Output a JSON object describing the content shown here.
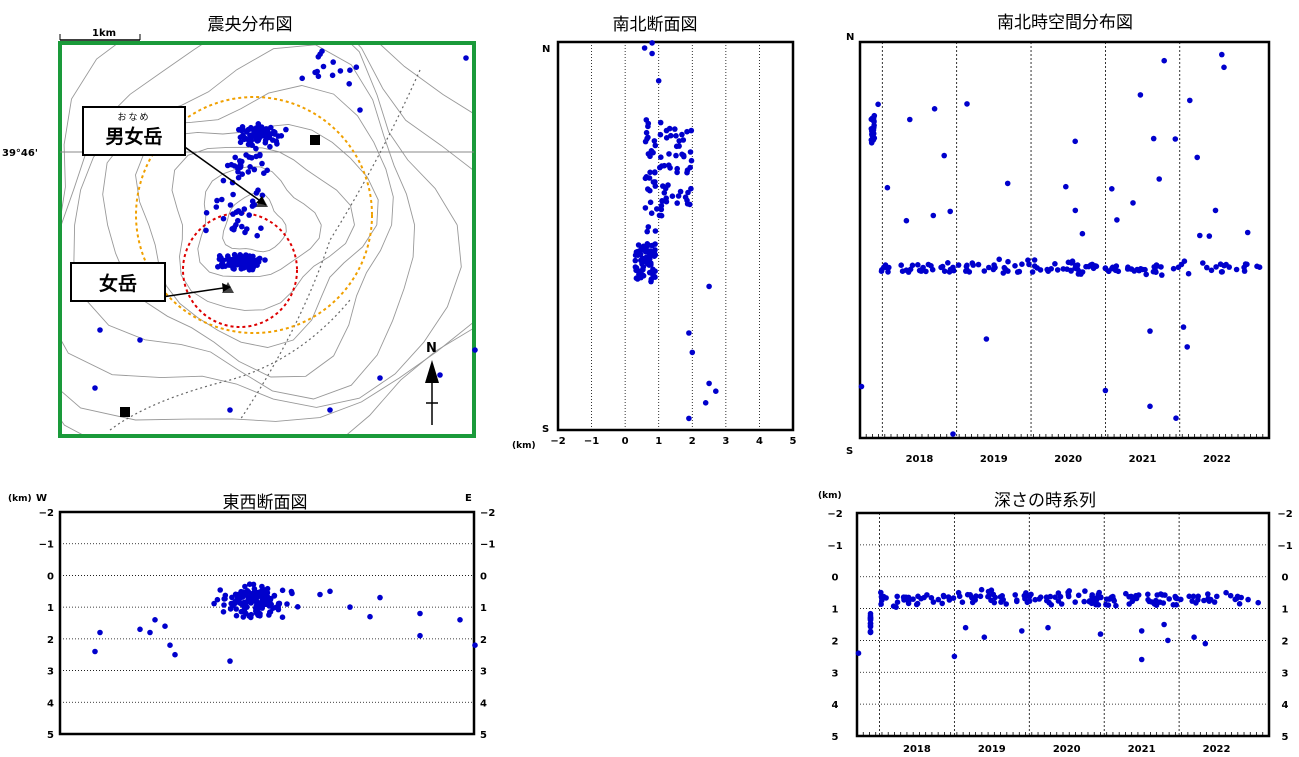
{
  "map": {
    "title": "震央分布図",
    "scale_label": "1km",
    "lat_label": "39°46'",
    "north_label": "N",
    "callout_onnnanome": "男女岳",
    "callout_onname_ruby": "おなめ",
    "callout_medake": "女岳",
    "colors": {
      "frame": "#1a9a3a",
      "dots": "#0000cc",
      "outer_circle": "#f0a000",
      "inner_circle": "#dd0000"
    }
  },
  "ns_section": {
    "title": "南北断面図",
    "top_label": "N",
    "bottom_label": "S",
    "unit": "(km)"
  },
  "ns_time": {
    "title": "南北時空間分布図",
    "top_label": "N",
    "bottom_label": "S"
  },
  "ew_section": {
    "title": "東西断面図",
    "unit": "(km)",
    "left_label": "W",
    "right_label": "E"
  },
  "depth_time": {
    "title": "深さの時系列",
    "unit": "(km)"
  },
  "chart_data": [
    {
      "type": "scatter",
      "title": "南北断面図",
      "xlabel": "(km)",
      "x_ticks": [
        "−2",
        "−1",
        "0",
        "1",
        "2",
        "3",
        "4",
        "5"
      ],
      "xlim": [
        -2,
        5
      ],
      "grid": true,
      "points_description_free": true,
      "clusters": [
        {
          "x_range": [
            0.4,
            1.0
          ],
          "n": 3,
          "pos_range": [
            0.0,
            0.03
          ]
        },
        {
          "x_range": [
            0.6,
            1.2
          ],
          "n": 45,
          "pos_range": [
            0.2,
            0.5
          ]
        },
        {
          "x_range": [
            0.3,
            0.9
          ],
          "n": 60,
          "pos_range": [
            0.52,
            0.62
          ]
        },
        {
          "x_range": [
            1.2,
            2.0
          ],
          "n": 40,
          "pos_range": [
            0.22,
            0.42
          ]
        }
      ]
    },
    {
      "type": "scatter",
      "title": "南北時空間分布図",
      "x_ticks": [
        "2018",
        "2019",
        "2020",
        "2021",
        "2022"
      ],
      "xlim": [
        2017.2,
        2022.7
      ]
    },
    {
      "type": "scatter",
      "title": "東西断面図",
      "ylabel": "(km)",
      "y_ticks_left": [
        "−2",
        "−1",
        "0",
        "1",
        "2",
        "3",
        "4",
        "5"
      ],
      "y_ticks_right": [
        "−2",
        "−1",
        "0",
        "1",
        "2",
        "3",
        "4",
        "5"
      ],
      "ylim": [
        -2,
        5
      ],
      "grid": true
    },
    {
      "type": "scatter",
      "title": "深さの時系列",
      "ylabel": "(km)",
      "x_ticks": [
        "2018",
        "2019",
        "2020",
        "2021",
        "2022"
      ],
      "y_ticks_left": [
        "−2",
        "−1",
        "0",
        "1",
        "2",
        "3",
        "4",
        "5"
      ],
      "y_ticks_right": [
        "−2",
        "−1",
        "0",
        "1",
        "2",
        "3",
        "4",
        "5"
      ],
      "xlim": [
        2017.2,
        2022.7
      ],
      "ylim": [
        -2,
        5
      ],
      "grid": true
    }
  ]
}
